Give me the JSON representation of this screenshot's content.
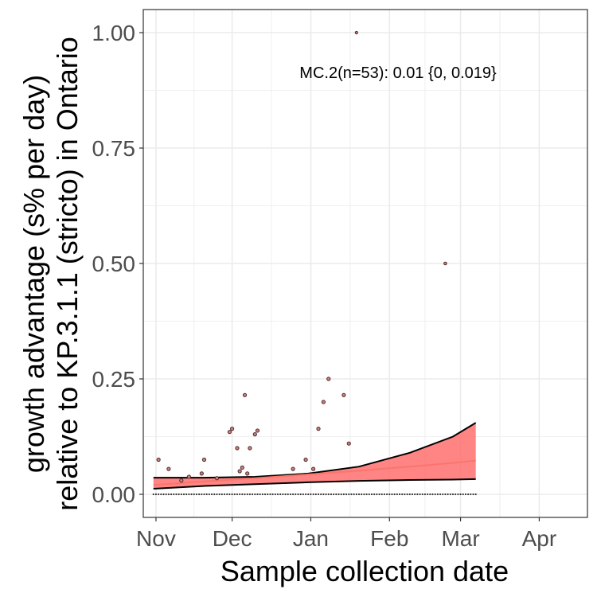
{
  "chart_data": {
    "type": "scatter",
    "title": "",
    "xlabel": "Sample collection date",
    "ylabel_lines": [
      "growth advantage (s% per day)",
      "relative to KP.3.1.1 (stricto) in Ontario"
    ],
    "annotation": "MC.2(n=53): 0.01 {0, 0.019}",
    "xlim": [
      "2024-10-27",
      "2025-04-20"
    ],
    "ylim": [
      -0.05,
      1.05
    ],
    "x_ticks": [
      {
        "date": "2024-11-01",
        "label": "Nov"
      },
      {
        "date": "2024-12-01",
        "label": "Dec"
      },
      {
        "date": "2025-01-01",
        "label": "Jan"
      },
      {
        "date": "2025-02-01",
        "label": "Feb"
      },
      {
        "date": "2025-03-01",
        "label": "Mar"
      },
      {
        "date": "2025-04-01",
        "label": "Apr"
      }
    ],
    "y_ticks": [
      {
        "value": 0,
        "label": "0.00"
      },
      {
        "value": 0.25,
        "label": "0.25"
      },
      {
        "value": 0.5,
        "label": "0.50"
      },
      {
        "value": 0.75,
        "label": "0.75"
      },
      {
        "value": 1.0,
        "label": "1.00"
      }
    ],
    "grid": true,
    "colors": {
      "fit_line": "#F8766D",
      "ribbon_fill": "#FF6F6F",
      "ribbon_edge": "#000000",
      "points": "#4a2a2a",
      "grid": "#ebebeb",
      "panel_border": "#333333"
    },
    "points": [
      {
        "x": "2024-11-02",
        "y": 0.075
      },
      {
        "x": "2024-11-06",
        "y": 0.055
      },
      {
        "x": "2024-11-11",
        "y": 0.03
      },
      {
        "x": "2024-11-14",
        "y": 0.038
      },
      {
        "x": "2024-11-19",
        "y": 0.045
      },
      {
        "x": "2024-11-20",
        "y": 0.075
      },
      {
        "x": "2024-11-25",
        "y": 0.035
      },
      {
        "x": "2024-11-30",
        "y": 0.135
      },
      {
        "x": "2024-12-01",
        "y": 0.142
      },
      {
        "x": "2024-12-03",
        "y": 0.1
      },
      {
        "x": "2024-12-04",
        "y": 0.05
      },
      {
        "x": "2024-12-05",
        "y": 0.058
      },
      {
        "x": "2024-12-06",
        "y": 0.215
      },
      {
        "x": "2024-12-07",
        "y": 0.045
      },
      {
        "x": "2024-12-08",
        "y": 0.1
      },
      {
        "x": "2024-12-10",
        "y": 0.13
      },
      {
        "x": "2024-12-11",
        "y": 0.138
      },
      {
        "x": "2024-12-25",
        "y": 0.055
      },
      {
        "x": "2024-12-30",
        "y": 0.075
      },
      {
        "x": "2025-01-02",
        "y": 0.055
      },
      {
        "x": "2025-01-04",
        "y": 0.142
      },
      {
        "x": "2025-01-06",
        "y": 0.2
      },
      {
        "x": "2025-01-08",
        "y": 0.25
      },
      {
        "x": "2025-01-14",
        "y": 0.215
      },
      {
        "x": "2025-01-16",
        "y": 0.11
      },
      {
        "x": "2025-01-19",
        "y": 1.0
      },
      {
        "x": "2025-02-23",
        "y": 0.5
      }
    ],
    "zero_points_range": [
      "2024-10-31",
      "2025-03-07"
    ],
    "fit": {
      "x": [
        "2024-10-31",
        "2024-11-20",
        "2024-12-10",
        "2024-12-31",
        "2025-01-20",
        "2025-02-09",
        "2025-02-26",
        "2025-03-07"
      ],
      "y": [
        0.02,
        0.028,
        0.035,
        0.043,
        0.051,
        0.06,
        0.068,
        0.073
      ],
      "lower": [
        0.012,
        0.018,
        0.022,
        0.026,
        0.029,
        0.031,
        0.032,
        0.033
      ],
      "upper": [
        0.036,
        0.036,
        0.038,
        0.045,
        0.06,
        0.09,
        0.125,
        0.155
      ]
    }
  }
}
